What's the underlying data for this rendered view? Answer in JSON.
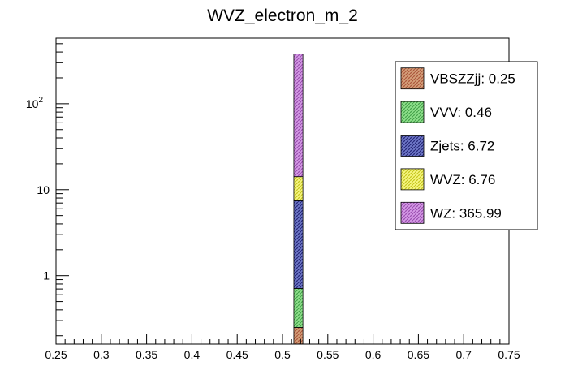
{
  "chart_data": {
    "type": "bar",
    "stacked": true,
    "title": "WVZ_electron_m_2",
    "xlabel": "",
    "ylabel": "",
    "x_range": [
      0.25,
      0.75
    ],
    "x_ticks": [
      "0.25",
      "0.3",
      "0.35",
      "0.4",
      "0.45",
      "0.5",
      "0.55",
      "0.6",
      "0.65",
      "0.7",
      "0.75"
    ],
    "y_scale": "log",
    "y_range": [
      0.16,
      580
    ],
    "y_ticks": [
      {
        "value": 1,
        "label": "1"
      },
      {
        "value": 10,
        "label": "10"
      },
      {
        "value": 100,
        "label": "10",
        "exponent": "2"
      }
    ],
    "bin": [
      0.5125,
      0.5225
    ],
    "legend_position": "top-right",
    "series": [
      {
        "name": "VBSZZjj",
        "legend": "VBSZZjj: 0.25",
        "value": 0.25,
        "color": "#d4a07a",
        "stroke": "#a0402a"
      },
      {
        "name": "VVV",
        "legend": "VVV: 0.46",
        "value": 0.46,
        "color": "#8fe08c",
        "stroke": "#2f8f38"
      },
      {
        "name": "Zjets",
        "legend": "Zjets: 6.72",
        "value": 6.72,
        "color": "#6f78c8",
        "stroke": "#101060"
      },
      {
        "name": "WVZ",
        "legend": "WVZ: 6.76",
        "value": 6.76,
        "color": "#f6f682",
        "stroke": "#b8b800"
      },
      {
        "name": "WZ",
        "legend": "WZ: 365.99",
        "value": 365.99,
        "color": "#d59ae6",
        "stroke": "#8a3aa0"
      }
    ]
  }
}
